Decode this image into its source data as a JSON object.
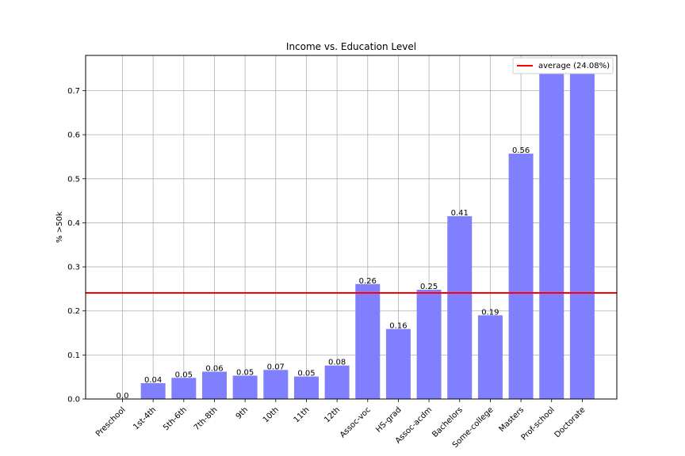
{
  "chart_data": {
    "type": "bar",
    "title": "Income vs. Education Level",
    "xlabel": "",
    "ylabel": "% >50k",
    "categories": [
      "Preschool",
      "1st-4th",
      "5th-6th",
      "7th-8th",
      "9th",
      "10th",
      "11th",
      "12th",
      "Assoc-voc",
      "HS-grad",
      "Assoc-acdm",
      "Bachelors",
      "Some-college",
      "Masters",
      "Prof-school",
      "Doctorate"
    ],
    "values": [
      0.0,
      0.036,
      0.048,
      0.062,
      0.053,
      0.066,
      0.051,
      0.076,
      0.261,
      0.159,
      0.248,
      0.415,
      0.19,
      0.557,
      0.74,
      0.741
    ],
    "data_labels": [
      "0.0",
      "0.04",
      "0.05",
      "0.06",
      "0.05",
      "0.07",
      "0.05",
      "0.08",
      "0.26",
      "0.16",
      "0.25",
      "0.41",
      "0.19",
      "0.56",
      "",
      ""
    ],
    "average": {
      "value": 0.2408,
      "label": "average (24.08%)",
      "color": "#ff0000"
    },
    "bar_color": "#8080ff",
    "ylim": [
      0,
      0.78
    ],
    "yticks": [
      "0.0",
      "0.1",
      "0.2",
      "0.3",
      "0.4",
      "0.5",
      "0.6",
      "0.7"
    ],
    "grid": true,
    "legend_position": "top-right"
  }
}
